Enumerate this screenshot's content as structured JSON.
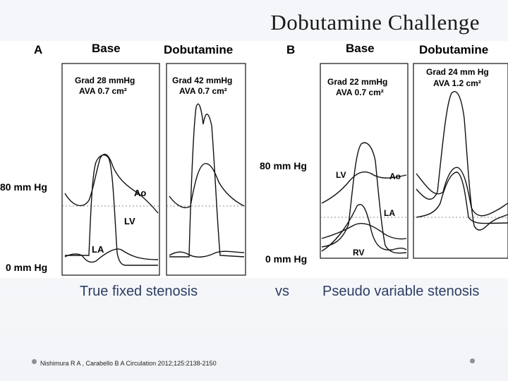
{
  "slide": {
    "title": "Dobutamine Challenge",
    "caption_left": "True fixed stenosis",
    "caption_vs": "vs",
    "caption_right": "Pseudo variable stenosis",
    "citation": "Nishimura R A , Carabello B A Circulation 2012;125:2138-2150"
  },
  "panel_a": {
    "letter": "A",
    "base_title": "Base",
    "dobutamine_title": "Dobutamine",
    "base_grad": "Grad 28 mmHg",
    "base_ava": "AVA 0.7 cm²",
    "dob_grad": "Grad 42 mmHg",
    "dob_ava": "AVA 0.7 cm²",
    "label_ao": "Ao",
    "label_lv": "LV",
    "label_la": "LA",
    "scale_80": "80 mm Hg",
    "scale_0": "0 mm Hg"
  },
  "panel_b": {
    "letter": "B",
    "base_title": "Base",
    "dobutamine_title": "Dobutamine",
    "base_grad": "Grad 22 mmHg",
    "base_ava": "AVA 0.7 cm²",
    "dob_grad": "Grad 24 mm Hg",
    "dob_ava": "AVA 1.2 cm²",
    "label_lv": "LV",
    "label_ao": "Ao",
    "label_la": "LA",
    "label_rv": "RV",
    "scale_80": "80 mm Hg",
    "scale_0": "0 mm Hg"
  },
  "colors": {
    "caption": "#2c3e63",
    "trace": "#111111",
    "grid": "#555555"
  }
}
